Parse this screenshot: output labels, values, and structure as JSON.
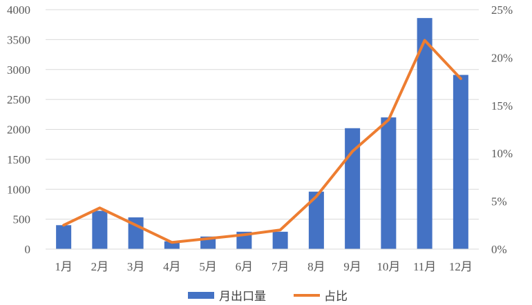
{
  "chart_data": {
    "type": "bar",
    "categories": [
      "1月",
      "2月",
      "3月",
      "4月",
      "5月",
      "6月",
      "7月",
      "8月",
      "9月",
      "10月",
      "11月",
      "12月"
    ],
    "series": [
      {
        "name": "月出口量",
        "type": "bar",
        "axis": "left",
        "color": "#4472C4",
        "values": [
          400,
          640,
          530,
          130,
          210,
          290,
          290,
          960,
          2020,
          2200,
          3860,
          2910
        ]
      },
      {
        "name": "占比",
        "type": "line",
        "axis": "right",
        "color": "#ED7D31",
        "values": [
          2.5,
          4.3,
          2.5,
          0.7,
          1.1,
          1.5,
          2.0,
          5.5,
          10.2,
          13.5,
          21.8,
          17.8
        ]
      }
    ],
    "y_left": {
      "min": 0,
      "max": 4000,
      "step": 500
    },
    "y_right": {
      "min": 0,
      "max": 25,
      "step": 5,
      "unit": "%"
    },
    "grid": true,
    "legend": "bottom"
  }
}
